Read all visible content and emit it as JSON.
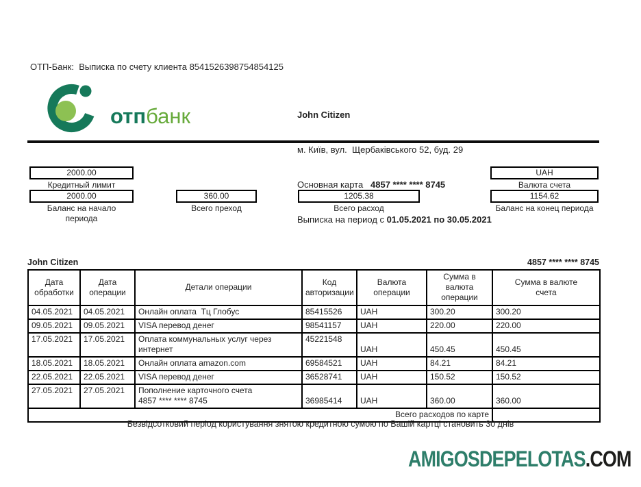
{
  "colors": {
    "logo_dark_green": "#16795a",
    "logo_light_green": "#8dc153",
    "logo_bank_text_green": "#67aa3b",
    "watermark_green": "#2e7e6a",
    "watermark_dark": "#1d1d1b"
  },
  "header": {
    "statement_line": "ОТП-Банк:  Выписка по счету клиента 8541526398754854125"
  },
  "logo": {
    "text_bold": "отп",
    "text_light": "банк"
  },
  "customer": {
    "name": "John Citizen",
    "address": "м. Київ, вул.  Щербаківського 52, буд. 29",
    "card_label": "Основная карта   ",
    "card_number": "4857 **** **** 8745",
    "period_label": "Выписка на период с ",
    "period_value": "01.05.2021 по 30.05.2021"
  },
  "summary": {
    "credit_limit": {
      "value": "2000.00",
      "label": "Кредитный лимит"
    },
    "balance_start": {
      "value": "2000.00",
      "label": "Баланс на начало\nпериода"
    },
    "total_in": {
      "value": "360.00",
      "label": "Всего преход"
    },
    "total_out": {
      "value": "1205.38",
      "label": "Всего расход"
    },
    "currency": {
      "value": "UAH",
      "label": "Валюта счета"
    },
    "balance_end": {
      "value": "1154.62",
      "label": "Баланс на конец периода"
    }
  },
  "table": {
    "caption_left": "John Citizen",
    "caption_right": "4857 **** **** 8745",
    "columns": [
      "Дата\nобработки",
      "Дата\nоперации",
      "Детали операции",
      "Код\nавторизации",
      "Валюта\nоперации",
      "Сумма в\nвалюта\nоперации",
      "Сумма в валюте\nсчета"
    ],
    "rows": [
      [
        "04.05.2021",
        "04.05.2021",
        "Онлайн оплата  Тц Глобус",
        "85415526",
        "UAH",
        "300.20",
        "300.20"
      ],
      [
        "09.05.2021",
        "09.05.2021",
        "VISA перевод денег",
        "98541157",
        "UAH",
        "220.00",
        "220.00"
      ],
      [
        "17.05.2021",
        "17.05.2021",
        "Оплата коммунальных услуг через\nинтернет",
        "45221548",
        "UAH",
        "450.45",
        "450.45"
      ],
      [
        "18.05.2021",
        "18.05.2021",
        "Онлайн оплата amazon.com",
        "69584521",
        "UAH",
        "84.21",
        "84.21"
      ],
      [
        "22.05.2021",
        "22.05.2021",
        "VISA перевод денег",
        "36528741",
        "UAH",
        "150.52",
        "150.52"
      ],
      [
        "27.05.2021",
        "27.05.2021",
        "Пополнение карточного счета\n4857 **** **** 8745",
        "36985414",
        "UAH",
        "360.00",
        "360.00"
      ]
    ],
    "total_label": "Всего расходов по карте",
    "total_value": ""
  },
  "footer": {
    "note": "Безвідсотковий період користування знятою кредитною сумою по Вашій картці становить 30 днів",
    "watermark_green_part": "AMIGOSDEPELOTAS",
    "watermark_dark_part": ".COM"
  }
}
